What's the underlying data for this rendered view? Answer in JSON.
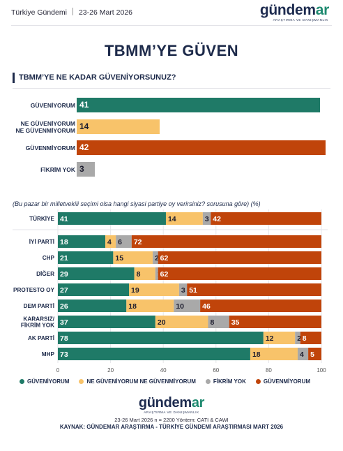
{
  "header": {
    "source_name": "Türkiye Gündemi",
    "date_range": "23-26 Mart 2026",
    "logo_text_main": "gündem",
    "logo_text_accent": "ar",
    "logo_tagline": "ARAŞTIRMA VE DANIŞMANLIK"
  },
  "main_title": "TBMM’YE GÜVEN",
  "question_title": "TBMM’YE NE KADAR GÜVENİYORSUNUZ?",
  "sub_question": "(Bu pazar bir milletvekili seçimi olsa hangi siyasi partiye oy verirsiniz? sorusuna göre) (%)",
  "colors": {
    "guveniyorum": "#1f7a67",
    "ne_ne": "#f8c36a",
    "fikrim_yok": "#a9a9a9",
    "guvenmiyorum": "#c0440a"
  },
  "chart_data": [
    {
      "type": "bar",
      "orientation": "horizontal",
      "categories": [
        "GÜVENİYORUM",
        "NE GÜVENİYORUM\nNE GÜVENMİYORUM",
        "GÜVENMİYORUM",
        "FİKRİM YOK"
      ],
      "values": [
        41,
        14,
        42,
        3
      ],
      "bar_colors": [
        "#1f7a67",
        "#f8c36a",
        "#c0440a",
        "#a9a9a9"
      ]
    },
    {
      "type": "bar",
      "orientation": "horizontal",
      "stacked": true,
      "categories": [
        "TÜRKİYE",
        "İYİ PARTİ",
        "CHP",
        "DİĞER",
        "PROTESTO OY",
        "DEM PARTİ",
        "KARARSIZ/\nFİKRİM YOK",
        "AK PARTİ",
        "MHP"
      ],
      "series": [
        {
          "name": "GÜVENİYORUM",
          "color": "#1f7a67",
          "values": [
            41,
            18,
            21,
            29,
            27,
            26,
            37,
            78,
            73
          ]
        },
        {
          "name": "NE GÜVENİYORUM NE GÜVENMİYORUM",
          "color": "#f8c36a",
          "values": [
            14,
            4,
            15,
            8,
            19,
            18,
            20,
            12,
            18
          ]
        },
        {
          "name": "FİKRİM YOK",
          "color": "#a9a9a9",
          "values": [
            3,
            6,
            2,
            1,
            3,
            10,
            8,
            2,
            4
          ]
        },
        {
          "name": "GÜVENMİYORUM",
          "color": "#c0440a",
          "values": [
            42,
            72,
            62,
            62,
            51,
            46,
            35,
            8,
            5
          ]
        }
      ],
      "xlim": [
        0,
        100
      ],
      "xticks": [
        0,
        20,
        40,
        60,
        80,
        100
      ],
      "legend_position": "bottom"
    }
  ],
  "footer": {
    "line1": "23-26 Mart 2026 n = 2200 Yöntem: CATI & CAWI",
    "line2": "KAYNAK: GÜNDEMAR ARAŞTIRMA - TÜRKİYE GÜNDEMİ ARAŞTIRMASI MART 2026"
  }
}
